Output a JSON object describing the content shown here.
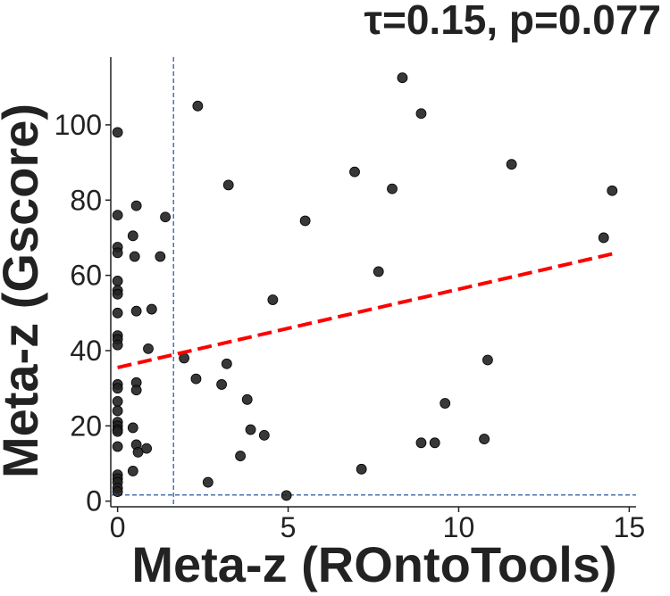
{
  "chart_data": {
    "type": "scatter",
    "title": "τ=0.15, p=0.077",
    "xlabel": "Meta-z (ROntoTools)",
    "ylabel": "Meta-z (Gscore)",
    "xlim": [
      -0.2,
      15.2
    ],
    "ylim": [
      -1.5,
      118
    ],
    "xticks": [
      0,
      5,
      10,
      15
    ],
    "yticks": [
      0,
      20,
      40,
      60,
      80,
      100
    ],
    "grid": false,
    "points": [
      {
        "x": 0.0,
        "y": 98.0
      },
      {
        "x": 0.0,
        "y": 76.0
      },
      {
        "x": 0.0,
        "y": 67.5
      },
      {
        "x": 0.0,
        "y": 66.0
      },
      {
        "x": 0.0,
        "y": 58.5
      },
      {
        "x": 0.0,
        "y": 56.0
      },
      {
        "x": 0.0,
        "y": 55.0
      },
      {
        "x": 0.0,
        "y": 50.0
      },
      {
        "x": 0.0,
        "y": 44.0
      },
      {
        "x": 0.0,
        "y": 43.0
      },
      {
        "x": 0.0,
        "y": 41.5
      },
      {
        "x": 0.0,
        "y": 31.0
      },
      {
        "x": 0.0,
        "y": 30.0
      },
      {
        "x": 0.0,
        "y": 26.5
      },
      {
        "x": 0.0,
        "y": 24.0
      },
      {
        "x": 0.0,
        "y": 21.0
      },
      {
        "x": 0.0,
        "y": 20.0
      },
      {
        "x": 0.0,
        "y": 19.0
      },
      {
        "x": 0.0,
        "y": 18.5
      },
      {
        "x": 0.0,
        "y": 14.5
      },
      {
        "x": 0.0,
        "y": 7.0
      },
      {
        "x": 0.0,
        "y": 6.0
      },
      {
        "x": 0.0,
        "y": 5.0
      },
      {
        "x": 0.0,
        "y": 3.5
      },
      {
        "x": 0.0,
        "y": 2.5
      },
      {
        "x": 0.55,
        "y": 78.5
      },
      {
        "x": 0.45,
        "y": 70.5
      },
      {
        "x": 0.5,
        "y": 65.0
      },
      {
        "x": 0.55,
        "y": 50.5
      },
      {
        "x": 0.55,
        "y": 31.5
      },
      {
        "x": 0.55,
        "y": 29.5
      },
      {
        "x": 0.45,
        "y": 19.5
      },
      {
        "x": 0.55,
        "y": 15.0
      },
      {
        "x": 0.6,
        "y": 13.0
      },
      {
        "x": 0.45,
        "y": 8.0
      },
      {
        "x": 0.85,
        "y": 14.0
      },
      {
        "x": 0.9,
        "y": 40.5
      },
      {
        "x": 1.0,
        "y": 51.0
      },
      {
        "x": 1.25,
        "y": 65.0
      },
      {
        "x": 1.4,
        "y": 75.5
      },
      {
        "x": 1.95,
        "y": 38.0
      },
      {
        "x": 2.3,
        "y": 32.5
      },
      {
        "x": 2.35,
        "y": 105.0
      },
      {
        "x": 2.65,
        "y": 5.0
      },
      {
        "x": 3.05,
        "y": 31.0
      },
      {
        "x": 3.2,
        "y": 36.5
      },
      {
        "x": 3.25,
        "y": 84.0
      },
      {
        "x": 3.6,
        "y": 12.0
      },
      {
        "x": 3.8,
        "y": 27.0
      },
      {
        "x": 3.9,
        "y": 19.0
      },
      {
        "x": 4.3,
        "y": 17.5
      },
      {
        "x": 4.55,
        "y": 53.5
      },
      {
        "x": 4.95,
        "y": 1.5
      },
      {
        "x": 5.5,
        "y": 74.5
      },
      {
        "x": 6.95,
        "y": 87.5
      },
      {
        "x": 7.15,
        "y": 8.5
      },
      {
        "x": 7.65,
        "y": 61.0
      },
      {
        "x": 8.05,
        "y": 83.0
      },
      {
        "x": 8.35,
        "y": 112.5
      },
      {
        "x": 8.9,
        "y": 103.0
      },
      {
        "x": 8.9,
        "y": 15.5
      },
      {
        "x": 9.3,
        "y": 15.5
      },
      {
        "x": 9.6,
        "y": 26.0
      },
      {
        "x": 10.75,
        "y": 16.5
      },
      {
        "x": 10.85,
        "y": 37.5
      },
      {
        "x": 11.55,
        "y": 89.5
      },
      {
        "x": 14.25,
        "y": 70.0
      },
      {
        "x": 14.5,
        "y": 82.5
      }
    ],
    "regression_line": {
      "x": [
        0,
        14.5
      ],
      "y": [
        35.5,
        65.7
      ],
      "color": "#ff0000",
      "style": "dashed"
    },
    "reference_lines": {
      "vertical_x": 1.64,
      "horizontal_y": 1.64,
      "color": "#4c72b0",
      "style": "dashed"
    },
    "point_color": "#222222"
  }
}
